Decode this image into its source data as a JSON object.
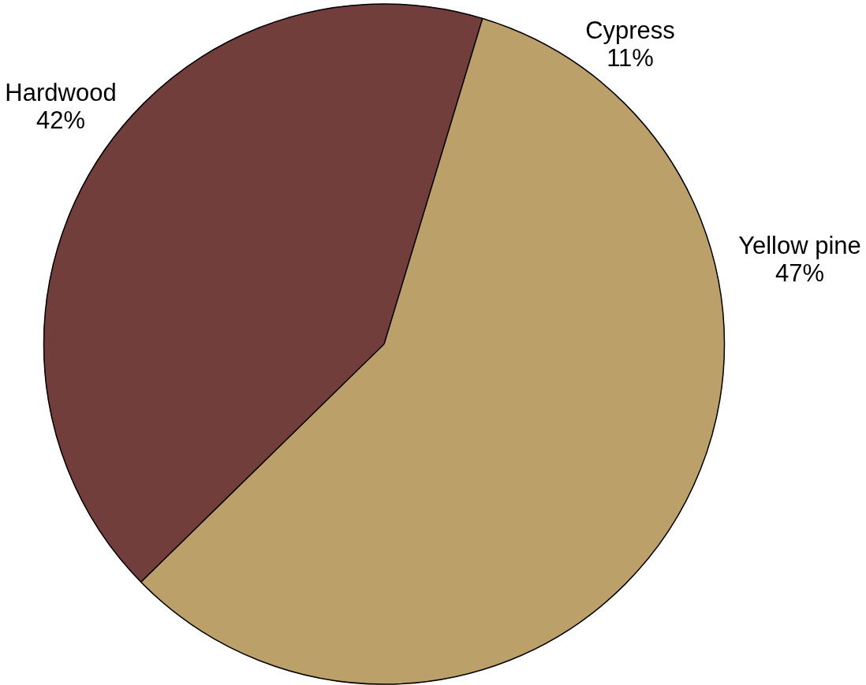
{
  "chart_data": {
    "type": "pie",
    "categories": [
      "Cypress",
      "Yellow pine",
      "Hardwood"
    ],
    "values": [
      11,
      47,
      42
    ],
    "value_labels": [
      "11%",
      "47%",
      "42%"
    ],
    "colors": [
      "#bca06a",
      "#bca06a",
      "#723e3c"
    ]
  }
}
